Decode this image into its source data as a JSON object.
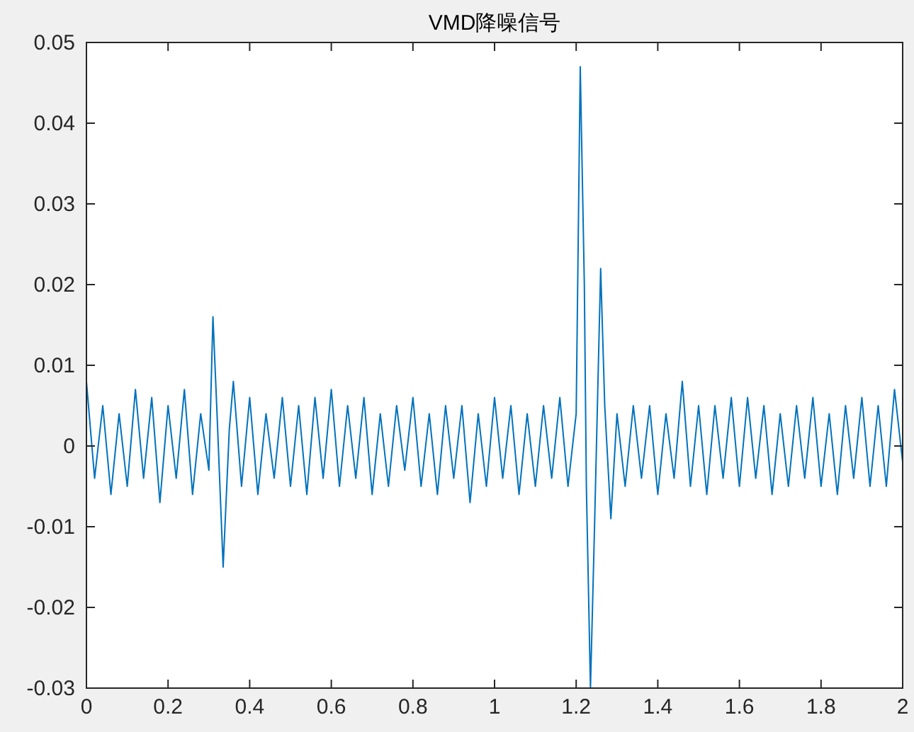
{
  "chart_data": {
    "type": "line",
    "title": "VMD降噪信号",
    "color": "#0072bd",
    "x": [
      0,
      0.02,
      0.04,
      0.06,
      0.08,
      0.1,
      0.12,
      0.14,
      0.16,
      0.18,
      0.2,
      0.22,
      0.24,
      0.26,
      0.28,
      0.3,
      0.31,
      0.32,
      0.335,
      0.35,
      0.36,
      0.38,
      0.4,
      0.42,
      0.44,
      0.46,
      0.48,
      0.5,
      0.52,
      0.54,
      0.56,
      0.58,
      0.6,
      0.62,
      0.64,
      0.66,
      0.68,
      0.7,
      0.72,
      0.74,
      0.76,
      0.78,
      0.8,
      0.82,
      0.84,
      0.86,
      0.88,
      0.9,
      0.92,
      0.94,
      0.96,
      0.98,
      1.0,
      1.02,
      1.04,
      1.06,
      1.08,
      1.1,
      1.12,
      1.14,
      1.16,
      1.18,
      1.2,
      1.21,
      1.22,
      1.225,
      1.235,
      1.245,
      1.26,
      1.27,
      1.285,
      1.3,
      1.32,
      1.34,
      1.36,
      1.38,
      1.4,
      1.42,
      1.44,
      1.46,
      1.48,
      1.5,
      1.52,
      1.54,
      1.56,
      1.58,
      1.6,
      1.62,
      1.64,
      1.66,
      1.68,
      1.7,
      1.72,
      1.74,
      1.76,
      1.78,
      1.8,
      1.82,
      1.84,
      1.86,
      1.88,
      1.9,
      1.92,
      1.94,
      1.96,
      1.98,
      2.0
    ],
    "values": [
      0.008,
      -0.004,
      0.005,
      -0.006,
      0.004,
      -0.005,
      0.007,
      -0.004,
      0.006,
      -0.007,
      0.005,
      -0.004,
      0.007,
      -0.006,
      0.004,
      -0.003,
      0.016,
      0.004,
      -0.015,
      0.002,
      0.008,
      -0.005,
      0.006,
      -0.006,
      0.004,
      -0.004,
      0.006,
      -0.005,
      0.005,
      -0.006,
      0.006,
      -0.004,
      0.007,
      -0.005,
      0.005,
      -0.004,
      0.006,
      -0.006,
      0.004,
      -0.005,
      0.005,
      -0.003,
      0.006,
      -0.005,
      0.004,
      -0.006,
      0.005,
      -0.004,
      0.005,
      -0.007,
      0.004,
      -0.005,
      0.006,
      -0.004,
      0.005,
      -0.006,
      0.004,
      -0.005,
      0.005,
      -0.004,
      0.006,
      -0.005,
      0.004,
      0.047,
      0.02,
      -0.005,
      -0.03,
      -0.01,
      0.022,
      0.005,
      -0.009,
      0.004,
      -0.005,
      0.005,
      -0.004,
      0.005,
      -0.006,
      0.004,
      -0.004,
      0.008,
      -0.005,
      0.005,
      -0.006,
      0.005,
      -0.004,
      0.006,
      -0.005,
      0.006,
      -0.004,
      0.005,
      -0.006,
      0.004,
      -0.005,
      0.005,
      -0.004,
      0.006,
      -0.005,
      0.004,
      -0.006,
      0.005,
      -0.004,
      0.006,
      -0.005,
      0.005,
      -0.005,
      0.007,
      -0.002
    ],
    "xlim": [
      0,
      2
    ],
    "ylim": [
      -0.03,
      0.05
    ],
    "xticks": [
      0,
      0.2,
      0.4,
      0.6,
      0.8,
      1,
      1.2,
      1.4,
      1.6,
      1.8,
      2
    ],
    "yticks": [
      -0.03,
      -0.02,
      -0.01,
      0,
      0.01,
      0.02,
      0.03,
      0.04,
      0.05
    ]
  }
}
